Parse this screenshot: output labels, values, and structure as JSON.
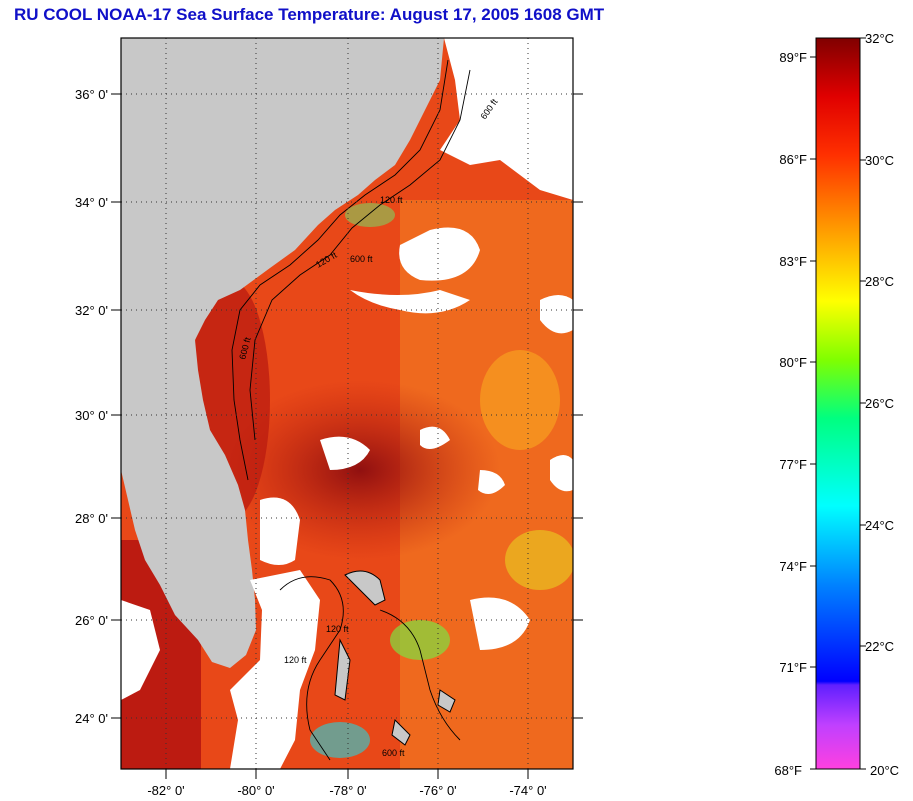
{
  "title": "RU COOL  NOAA-17  Sea Surface Temperature:  August 17, 2005 1608 GMT",
  "map": {
    "lat_labels": [
      "36° 0'",
      "34° 0'",
      "32° 0'",
      "30° 0'",
      "28° 0'",
      "26° 0'",
      "24° 0'"
    ],
    "lon_labels": [
      "-82° 0'",
      "-80° 0'",
      "-78° 0'",
      "-76° 0'",
      "-74° 0'"
    ],
    "isobath_labels": [
      "600 ft",
      "120 ft",
      "600 ft",
      "120 ft",
      "600 ft",
      "120 ft",
      "120 ft",
      "600 ft"
    ],
    "colors": {
      "land": "#c8c8c8",
      "ocean_warm": "#e83010",
      "ocean_hot": "#a81010",
      "cloud": "#ffffff"
    }
  },
  "colorbar": {
    "fahrenheit_labels": [
      "89°F",
      "86°F",
      "83°F",
      "80°F",
      "77°F",
      "74°F",
      "71°F",
      "68°F"
    ],
    "celsius_labels": [
      "32°C",
      "30°C",
      "28°C",
      "26°C",
      "24°C",
      "22°C",
      "20°C"
    ],
    "range_c": [
      20,
      32
    ],
    "range_f": [
      68,
      89.6
    ]
  }
}
